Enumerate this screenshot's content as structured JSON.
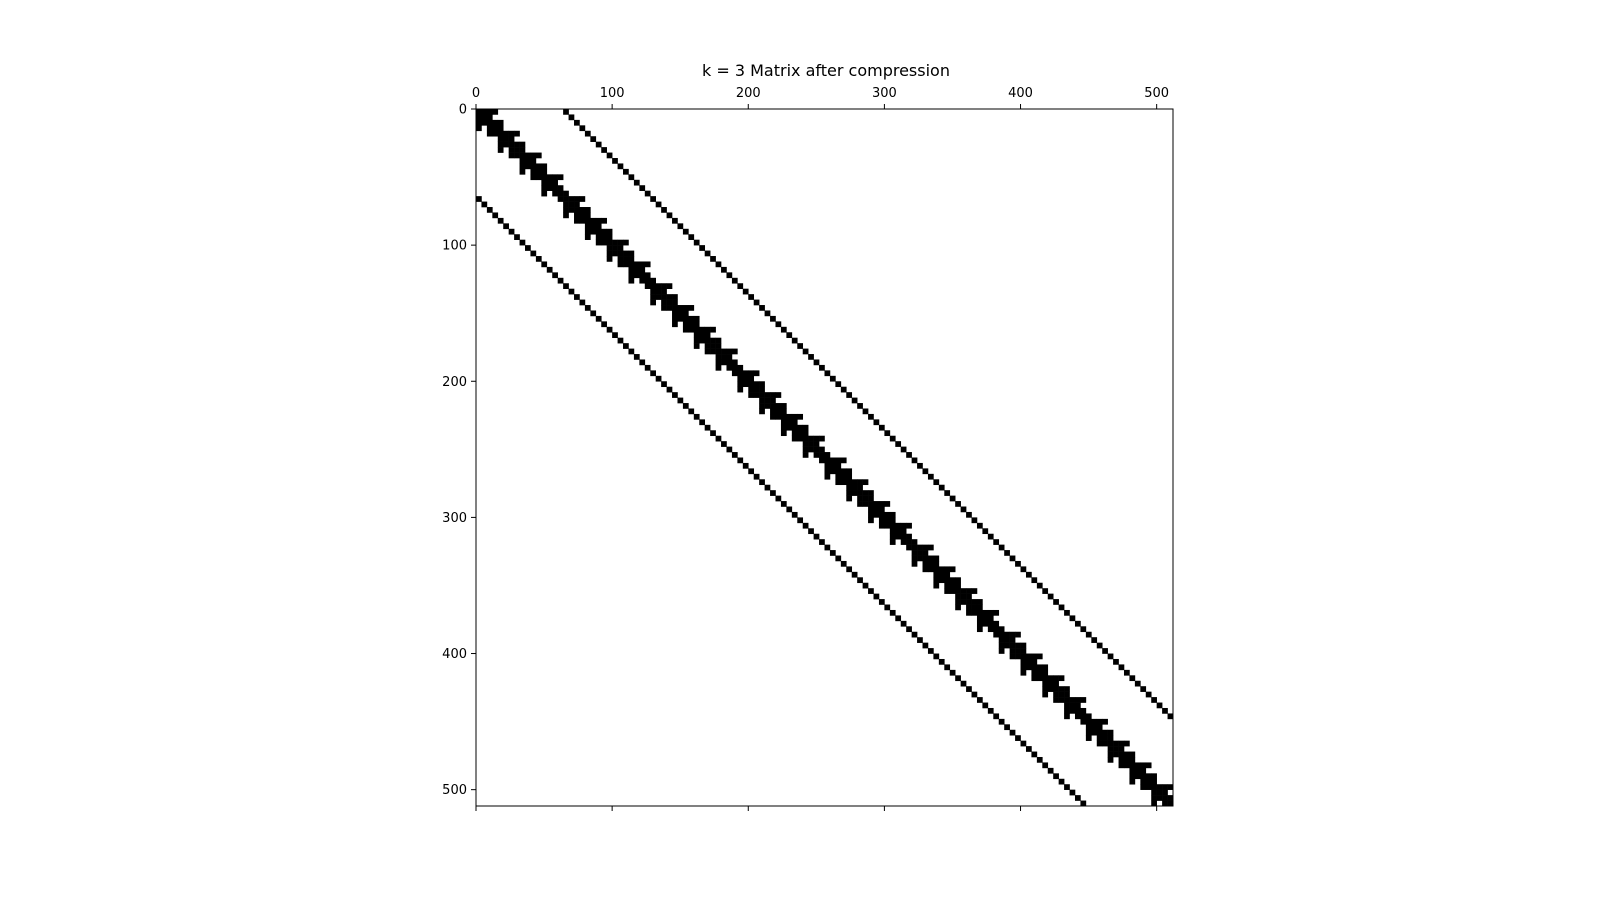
{
  "chart_data": {
    "type": "heatmap",
    "title": "k = 3 Matrix after compression",
    "matrix_size": 512,
    "xlim": [
      0,
      512
    ],
    "ylim": [
      512,
      0
    ],
    "xticks": [
      0,
      100,
      200,
      300,
      400,
      500
    ],
    "yticks": [
      0,
      100,
      200,
      300,
      400,
      500
    ],
    "xtick_position": "top",
    "grid": false,
    "colormap": {
      "nonzero": "#000000",
      "zero": "#ffffff"
    },
    "pattern": {
      "cell_size": 4,
      "diagonal_band_halfwidth_cells": 3,
      "block_size_cells": 16,
      "off_diagonal_offset": 64
    }
  }
}
